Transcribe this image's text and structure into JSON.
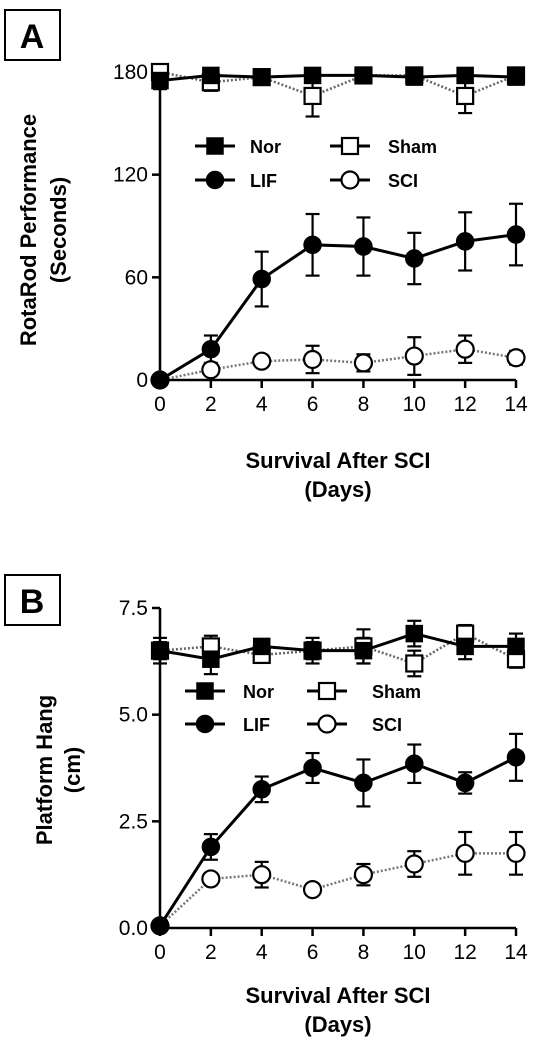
{
  "chart_data": [
    {
      "panel_label": "A",
      "type": "line",
      "xlabel_line1": "Survival After SCI",
      "xlabel_line2": "(Days)",
      "ylabel_line1": "RotaRod Performance",
      "ylabel_line2": "(Seconds)",
      "xlim": [
        0,
        14
      ],
      "ylim": [
        0,
        180
      ],
      "x_ticks": [
        0,
        2,
        4,
        6,
        8,
        10,
        12,
        14
      ],
      "y_ticks": [
        0,
        60,
        120,
        180
      ],
      "x": [
        0,
        2,
        4,
        6,
        8,
        10,
        12,
        14
      ],
      "series": [
        {
          "name": "Nor",
          "marker": "square-filled",
          "values": [
            175,
            178,
            177,
            178,
            178,
            177,
            178,
            177
          ],
          "errors": [
            5,
            4,
            3,
            3,
            3,
            3,
            3,
            3
          ]
        },
        {
          "name": "Sham",
          "marker": "square-open",
          "values": [
            180,
            174,
            177,
            166,
            178,
            178,
            166,
            178
          ],
          "errors": [
            3,
            5,
            3,
            12,
            3,
            3,
            10,
            3
          ]
        },
        {
          "name": "LIF",
          "marker": "circle-filled",
          "values": [
            0,
            18,
            59,
            79,
            78,
            71,
            81,
            85
          ],
          "errors": [
            0,
            8,
            16,
            18,
            17,
            15,
            17,
            18
          ]
        },
        {
          "name": "SCI",
          "marker": "circle-open",
          "values": [
            0,
            6,
            11,
            12,
            10,
            14,
            18,
            13
          ],
          "errors": [
            0,
            3,
            3,
            8,
            5,
            11,
            8,
            4
          ]
        }
      ]
    },
    {
      "panel_label": "B",
      "type": "line",
      "xlabel_line1": "Survival After SCI",
      "xlabel_line2": "(Days)",
      "ylabel_line1": "Platform Hang",
      "ylabel_line2": "(cm)",
      "xlim": [
        0,
        14
      ],
      "ylim": [
        0,
        7.5
      ],
      "x_ticks": [
        0,
        2,
        4,
        6,
        8,
        10,
        12,
        14
      ],
      "y_ticks": [
        "0.0",
        "2.5",
        "5.0",
        "7.5"
      ],
      "x": [
        0,
        2,
        4,
        6,
        8,
        10,
        12,
        14
      ],
      "series": [
        {
          "name": "Nor",
          "marker": "square-filled",
          "values": [
            6.5,
            6.3,
            6.6,
            6.5,
            6.5,
            6.9,
            6.6,
            6.6
          ],
          "errors": [
            0.3,
            0.35,
            0.15,
            0.3,
            0.3,
            0.3,
            0.3,
            0.3
          ]
        },
        {
          "name": "Sham",
          "marker": "square-open",
          "values": [
            6.5,
            6.6,
            6.4,
            6.5,
            6.6,
            6.2,
            6.9,
            6.3
          ],
          "errors": [
            0.2,
            0.25,
            0.15,
            0.2,
            0.4,
            0.3,
            0.2,
            0.2
          ]
        },
        {
          "name": "LIF",
          "marker": "circle-filled",
          "values": [
            0.05,
            1.9,
            3.25,
            3.75,
            3.4,
            3.85,
            3.4,
            4.0
          ],
          "errors": [
            0,
            0.3,
            0.3,
            0.35,
            0.55,
            0.45,
            0.25,
            0.55
          ]
        },
        {
          "name": "SCI",
          "marker": "circle-open",
          "values": [
            0.05,
            1.15,
            1.25,
            0.9,
            1.25,
            1.5,
            1.75,
            1.75
          ],
          "errors": [
            0,
            0.1,
            0.3,
            0.1,
            0.25,
            0.3,
            0.5,
            0.5
          ]
        }
      ]
    }
  ]
}
